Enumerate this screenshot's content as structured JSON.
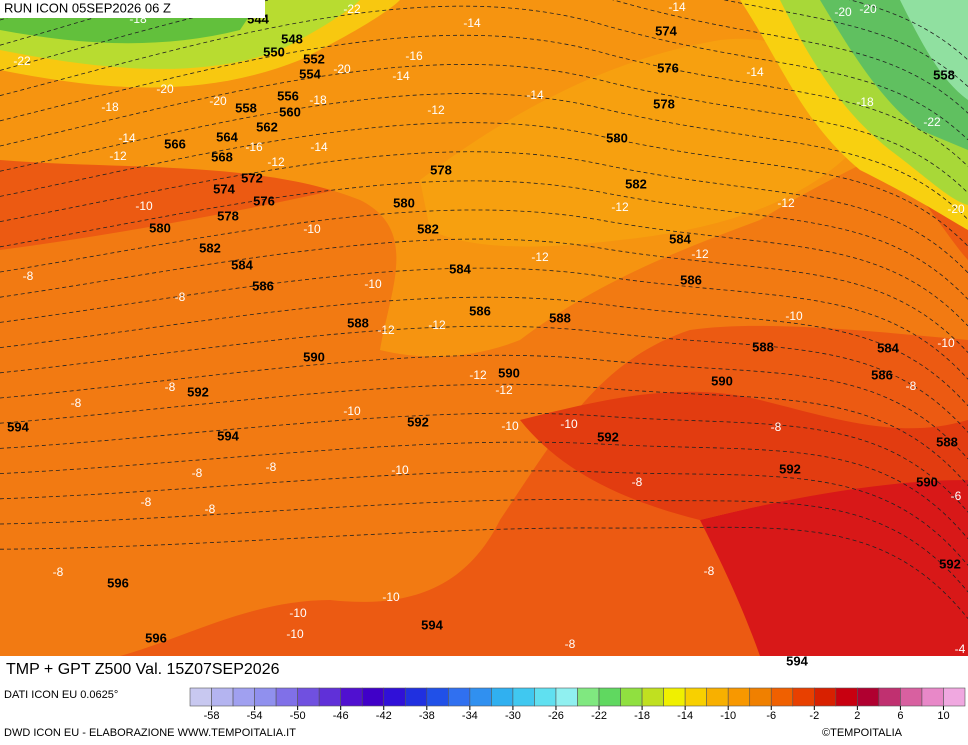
{
  "header": {
    "run": "RUN ICON 05SEP2026 06 Z",
    "title": "TMP + GPT Z500 Val. 15Z07SEP2026"
  },
  "footer": {
    "source": "DATI ICON EU 0.0625°",
    "credit": "DWD ICON EU - ELABORAZIONE WWW.TEMPOITALIA.IT",
    "copyright": "©TEMPOITALIA"
  },
  "colorbar": {
    "range": [
      -60,
      12
    ],
    "ticks": [
      -58,
      -54,
      -50,
      -46,
      -42,
      -38,
      -34,
      -30,
      -26,
      -22,
      -18,
      -14,
      -10,
      -6,
      -2,
      2,
      6,
      10
    ],
    "colors": [
      "#c8c8f0",
      "#b4b4f0",
      "#a0a0f0",
      "#9090ee",
      "#8070e8",
      "#7050e0",
      "#6030d8",
      "#5010d0",
      "#4000c8",
      "#3010d8",
      "#2030e0",
      "#2050e8",
      "#3070f0",
      "#3090f0",
      "#30b0f0",
      "#40c8f0",
      "#60e0f0",
      "#90f0f0",
      "#80e880",
      "#60d860",
      "#90e040",
      "#c0e020",
      "#f0f000",
      "#f8d000",
      "#f8b000",
      "#f89800",
      "#f08000",
      "#f06000",
      "#e84000",
      "#d82000",
      "#c80010",
      "#b00030",
      "#c03070",
      "#d860a0",
      "#e888c8",
      "#f0a8e0"
    ]
  },
  "gpt_labels": [
    544,
    548,
    550,
    552,
    554,
    556,
    558,
    560,
    562,
    564,
    566,
    568,
    572,
    574,
    576,
    578,
    580,
    582,
    584,
    586,
    588,
    590,
    592,
    594,
    594,
    596,
    596,
    594,
    592,
    590,
    588,
    586,
    584,
    582,
    580,
    578,
    578,
    576,
    574,
    580,
    582,
    584,
    586,
    588,
    590,
    592,
    592,
    590,
    588,
    586,
    584,
    592,
    594,
    558
  ],
  "tmp_labels": [
    -22,
    -18,
    -22,
    -20,
    -20,
    -18,
    -14,
    -12,
    -16,
    -12,
    -14,
    -18,
    -20,
    -16,
    -14,
    -14,
    -14,
    -12,
    -14,
    -14,
    -20,
    -20,
    -18,
    -22,
    -20,
    -12,
    -12,
    -12,
    -12,
    -10,
    -10,
    -10,
    -12,
    -12,
    -12,
    -12,
    -10,
    -10,
    -8,
    -8,
    -6,
    -10,
    -10,
    -10,
    -10,
    -8,
    -8,
    -8,
    -8,
    -8,
    -8,
    -8,
    -8,
    -8,
    -8,
    -8,
    -8,
    -10,
    -10,
    -10,
    -4
  ]
}
